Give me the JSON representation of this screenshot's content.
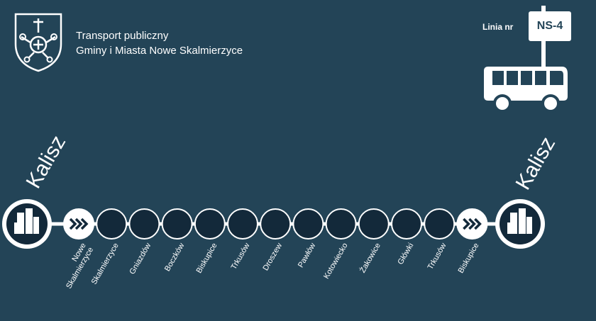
{
  "header": {
    "org_line1": "Transport publiczny",
    "org_line2": "Gminy i Miasta Nowe Skalmierzyce",
    "line_label": "Linia nr",
    "line_number": "NS-4"
  },
  "route": {
    "origin": "Kalisz",
    "destination": "Kalisz",
    "stops": [
      {
        "line1": "Nowe",
        "line2": "Skalmierzyce",
        "type": "chevron"
      },
      {
        "line1": "Skalmierzyce",
        "line2": "",
        "type": "stop"
      },
      {
        "line1": "Gniazdów",
        "line2": "",
        "type": "stop"
      },
      {
        "line1": "Boczków",
        "line2": "",
        "type": "stop"
      },
      {
        "line1": "Biskupice",
        "line2": "",
        "type": "stop"
      },
      {
        "line1": "Trkusów",
        "line2": "",
        "type": "stop"
      },
      {
        "line1": "Droszew",
        "line2": "",
        "type": "stop"
      },
      {
        "line1": "Pawłów",
        "line2": "",
        "type": "stop"
      },
      {
        "line1": "Kotowiecko",
        "line2": "",
        "type": "stop"
      },
      {
        "line1": "Żakowice",
        "line2": "",
        "type": "stop"
      },
      {
        "line1": "Główki",
        "line2": "",
        "type": "stop"
      },
      {
        "line1": "Trkusów",
        "line2": "",
        "type": "stop"
      },
      {
        "line1": "Biskupice",
        "line2": "",
        "type": "chevron"
      }
    ]
  },
  "icons": {
    "logo": "coat-of-arms-icon",
    "bus": "bus-icon",
    "terminal": "city-buildings-icon",
    "chevron": "double-chevron-right-icon"
  },
  "colors": {
    "background": "#234457",
    "stop_fill": "#13293a",
    "line": "#ffffff"
  }
}
